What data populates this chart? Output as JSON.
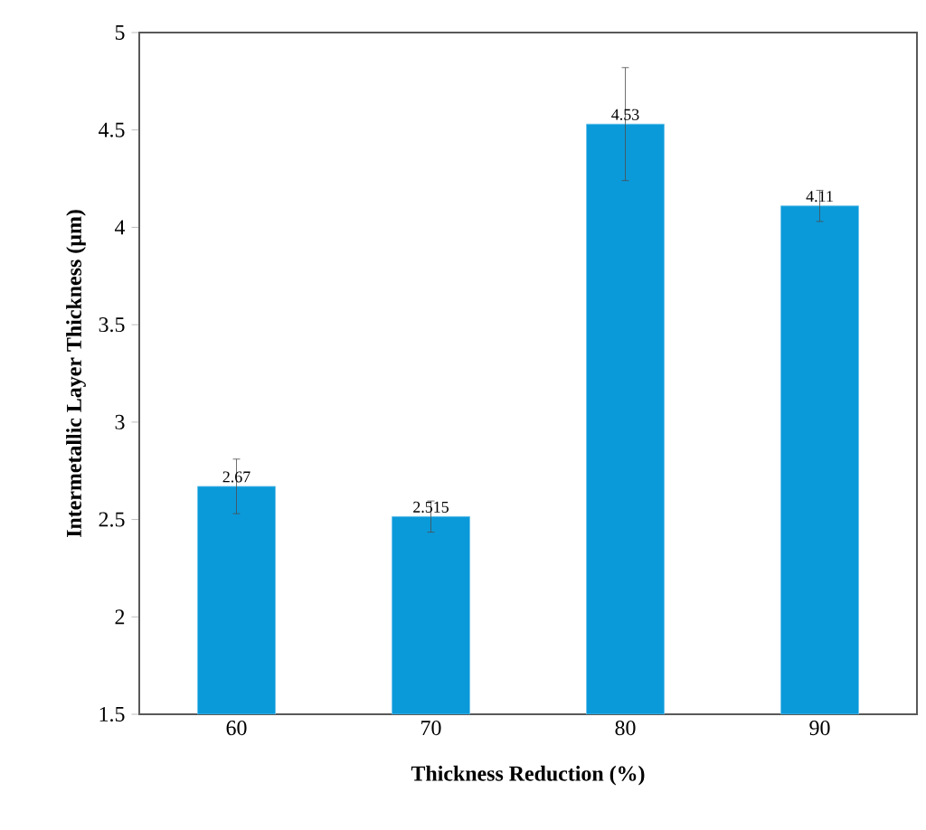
{
  "chart_data": {
    "type": "bar",
    "xlabel": "Thickness Reduction (%)",
    "ylabel": "Intermetallic Layer Thickness (µm)",
    "categories": [
      "60",
      "70",
      "80",
      "90"
    ],
    "values": [
      2.67,
      2.515,
      4.53,
      4.11
    ],
    "errors": [
      0.14,
      0.08,
      0.29,
      0.08
    ],
    "color": "#0a9ada",
    "ylim": [
      1.5,
      5
    ],
    "yticks": [
      1.5,
      2,
      2.5,
      3,
      3.5,
      4,
      4.5,
      5
    ],
    "data_labels": true,
    "grid": false
  }
}
